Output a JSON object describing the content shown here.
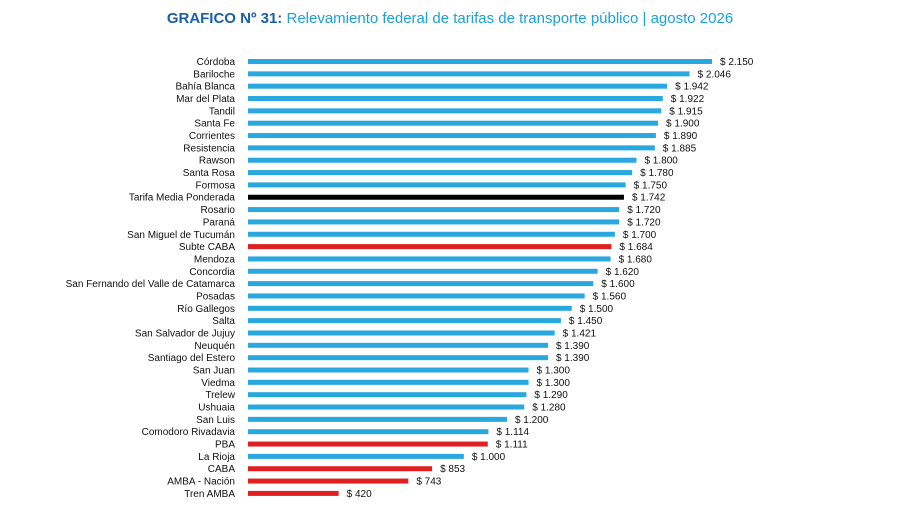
{
  "title": {
    "prefix": "GRAFICO Nº 31:",
    "text": "Relevamiento federal de tarifas de transporte público | agosto 2026"
  },
  "colors": {
    "default": "#29a8e0",
    "reference": "#000000",
    "highlight": "#e02020",
    "title_prefix": "#1a5fa8",
    "title_text": "#1aa0dc"
  },
  "chart_data": {
    "type": "bar",
    "orientation": "horizontal",
    "value_prefix": "$ ",
    "categories": [
      "Córdoba",
      "Bariloche",
      "Bahía Blanca",
      "Mar del Plata",
      "Tandil",
      "Santa Fe",
      "Corrientes",
      "Resistencia",
      "Rawson",
      "Santa Rosa",
      "Formosa",
      "Tarifa Media Ponderada",
      "Rosario",
      "Paraná",
      "San Miguel de Tucumán",
      "Subte CABA",
      "Mendoza",
      "Concordia",
      "San Fernando del Valle de Catamarca",
      "Posadas",
      "Río Gallegos",
      "Salta",
      "San Salvador de Jujuy",
      "Neuquén",
      "Santiago del Estero",
      "San Juan",
      "Viedma",
      "Trelew",
      "Ushuaia",
      "San Luis",
      "Comodoro Rivadavia",
      "PBA",
      "La Rioja",
      "CABA",
      "AMBA - Nación",
      "Tren AMBA"
    ],
    "values": [
      2150,
      2046,
      1942,
      1922,
      1915,
      1900,
      1890,
      1885,
      1800,
      1780,
      1750,
      1742,
      1720,
      1720,
      1700,
      1684,
      1680,
      1620,
      1600,
      1560,
      1500,
      1450,
      1421,
      1390,
      1390,
      1300,
      1300,
      1290,
      1280,
      1200,
      1114,
      1111,
      1000,
      853,
      743,
      420
    ],
    "value_labels": [
      "2.150",
      "2.046",
      "1.942",
      "1.922",
      "1.915",
      "1.900",
      "1.890",
      "1.885",
      "1.800",
      "1.780",
      "1.750",
      "1.742",
      "1.720",
      "1.720",
      "1.700",
      "1.684",
      "1.680",
      "1.620",
      "1.600",
      "1.560",
      "1.500",
      "1.450",
      "1.421",
      "1.390",
      "1.390",
      "1.300",
      "1.300",
      "1.290",
      "1.280",
      "1.200",
      "1.114",
      "1.111",
      "1.000",
      "853",
      "743",
      "420"
    ],
    "bar_colors": [
      "default",
      "default",
      "default",
      "default",
      "default",
      "default",
      "default",
      "default",
      "default",
      "default",
      "default",
      "reference",
      "default",
      "default",
      "default",
      "highlight",
      "default",
      "default",
      "default",
      "default",
      "default",
      "default",
      "default",
      "default",
      "default",
      "default",
      "default",
      "default",
      "default",
      "default",
      "default",
      "highlight",
      "default",
      "highlight",
      "highlight",
      "highlight"
    ],
    "xlim": [
      0,
      2150
    ],
    "grid": false,
    "legend": "none"
  }
}
